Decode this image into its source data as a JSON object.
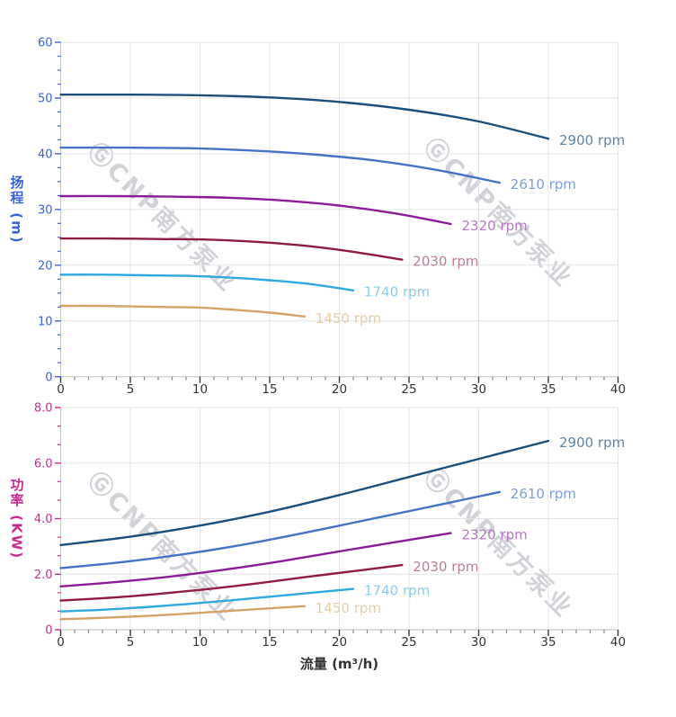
{
  "page": {
    "background": "#ffffff"
  },
  "watermark": {
    "text": "ⒼCNP南方泵业",
    "color": "#d2d3d9"
  },
  "axes": {
    "x_label_color": "#333333",
    "grid_color": "#e4e4e6",
    "axis_line_color": "#c9c9cc",
    "x_tick_major_color": "#3a3a3a",
    "x_tick_minor_color": "#8a8a8a"
  },
  "chart_data": [
    {
      "type": "line",
      "title": "",
      "xlabel": "",
      "ylabel": "扬程 (m)",
      "xlim": [
        0,
        40
      ],
      "ylim": [
        0,
        60
      ],
      "x_major_step": 5,
      "x_minor_step": 1,
      "y_major_step": 10,
      "y_minor_per_major": 4,
      "y_tick_format": "int",
      "x_ticklabels": [
        "0",
        "5",
        "10",
        "15",
        "20",
        "25",
        "30",
        "35",
        "40"
      ],
      "y_ticklabels": [
        "0",
        "10",
        "20",
        "30",
        "40",
        "50",
        "60"
      ],
      "axis_color": "#3d62d1",
      "grid": true,
      "legend_position": "end-of-curve labels",
      "series": [
        {
          "name": "2900 rpm",
          "color": "#1d4f7c",
          "label_color": "#6383a4",
          "points": [
            [
              0,
              50.6
            ],
            [
              5,
              50.6
            ],
            [
              10,
              50.5
            ],
            [
              15,
              50.1
            ],
            [
              20,
              49.3
            ],
            [
              25,
              47.9
            ],
            [
              30,
              45.8
            ],
            [
              35,
              42.7
            ]
          ]
        },
        {
          "name": "2610 rpm",
          "color": "#4673c5",
          "label_color": "#7e9ed9",
          "points": [
            [
              0,
              41.1
            ],
            [
              4.5,
              41.1
            ],
            [
              9,
              41.0
            ],
            [
              13.5,
              40.6
            ],
            [
              18,
              39.9
            ],
            [
              22.5,
              38.8
            ],
            [
              27,
              37.1
            ],
            [
              31.5,
              34.8
            ]
          ]
        },
        {
          "name": "2320 rpm",
          "color": "#8c1d98",
          "label_color": "#b678c2",
          "points": [
            [
              0,
              32.4
            ],
            [
              4,
              32.4
            ],
            [
              8,
              32.3
            ],
            [
              12,
              32.1
            ],
            [
              16,
              31.6
            ],
            [
              20,
              30.7
            ],
            [
              24,
              29.3
            ],
            [
              28,
              27.4
            ]
          ]
        },
        {
          "name": "2030 rpm",
          "color": "#8e1d41",
          "label_color": "#b8818f",
          "points": [
            [
              0,
              24.8
            ],
            [
              3.5,
              24.8
            ],
            [
              7,
              24.7
            ],
            [
              10.5,
              24.6
            ],
            [
              14,
              24.2
            ],
            [
              17.5,
              23.5
            ],
            [
              21,
              22.4
            ],
            [
              24.5,
              21.0
            ]
          ]
        },
        {
          "name": "1740 rpm",
          "color": "#30a9df",
          "label_color": "#8ecbee",
          "points": [
            [
              0,
              18.3
            ],
            [
              3,
              18.3
            ],
            [
              6,
              18.2
            ],
            [
              9,
              18.1
            ],
            [
              12,
              17.8
            ],
            [
              15,
              17.3
            ],
            [
              18,
              16.6
            ],
            [
              21,
              15.5
            ]
          ]
        },
        {
          "name": "1450 rpm",
          "color": "#d5a369",
          "label_color": "#e6cda9",
          "points": [
            [
              0,
              12.7
            ],
            [
              2.5,
              12.7
            ],
            [
              5,
              12.6
            ],
            [
              7.5,
              12.5
            ],
            [
              10,
              12.4
            ],
            [
              12.5,
              12.0
            ],
            [
              15,
              11.5
            ],
            [
              17.5,
              10.8
            ]
          ]
        }
      ]
    },
    {
      "type": "line",
      "title": "",
      "xlabel": "流量 (m³/h)",
      "ylabel": "功率 (KW)",
      "xlim": [
        0,
        40
      ],
      "ylim": [
        0,
        8
      ],
      "x_major_step": 5,
      "x_minor_step": 1,
      "y_major_step": 2,
      "y_minor_per_major": 3,
      "y_tick_format": "1dp",
      "x_ticklabels": [
        "0",
        "5",
        "10",
        "15",
        "20",
        "25",
        "30",
        "35",
        "40"
      ],
      "y_ticklabels": [
        "0",
        "2.0",
        "4.0",
        "6.0",
        "8.0"
      ],
      "axis_color": "#c42e8f",
      "grid": true,
      "legend_position": "end-of-curve labels",
      "series": [
        {
          "name": "2900 rpm",
          "color": "#1d4f7c",
          "label_color": "#6383a4",
          "points": [
            [
              0,
              3.05
            ],
            [
              5,
              3.35
            ],
            [
              10,
              3.75
            ],
            [
              15,
              4.25
            ],
            [
              20,
              4.85
            ],
            [
              25,
              5.5
            ],
            [
              30,
              6.15
            ],
            [
              35,
              6.8
            ]
          ]
        },
        {
          "name": "2610 rpm",
          "color": "#4673c5",
          "label_color": "#7e9ed9",
          "points": [
            [
              0,
              2.22
            ],
            [
              4.5,
              2.44
            ],
            [
              9,
              2.73
            ],
            [
              13.5,
              3.1
            ],
            [
              18,
              3.54
            ],
            [
              22.5,
              4.01
            ],
            [
              27,
              4.48
            ],
            [
              31.5,
              4.96
            ]
          ]
        },
        {
          "name": "2320 rpm",
          "color": "#8c1d98",
          "label_color": "#b678c2",
          "points": [
            [
              0,
              1.56
            ],
            [
              4,
              1.72
            ],
            [
              8,
              1.92
            ],
            [
              12,
              2.18
            ],
            [
              16,
              2.48
            ],
            [
              20,
              2.82
            ],
            [
              24,
              3.15
            ],
            [
              28,
              3.48
            ]
          ]
        },
        {
          "name": "2030 rpm",
          "color": "#8e1d41",
          "label_color": "#b8818f",
          "points": [
            [
              0,
              1.05
            ],
            [
              3.5,
              1.15
            ],
            [
              7,
              1.29
            ],
            [
              10.5,
              1.46
            ],
            [
              14,
              1.66
            ],
            [
              17.5,
              1.89
            ],
            [
              21,
              2.11
            ],
            [
              24.5,
              2.33
            ]
          ]
        },
        {
          "name": "1740 rpm",
          "color": "#30a9df",
          "label_color": "#8ecbee",
          "points": [
            [
              0,
              0.66
            ],
            [
              3,
              0.72
            ],
            [
              6,
              0.81
            ],
            [
              9,
              0.92
            ],
            [
              12,
              1.05
            ],
            [
              15,
              1.19
            ],
            [
              18,
              1.33
            ],
            [
              21,
              1.47
            ]
          ]
        },
        {
          "name": "1450 rpm",
          "color": "#d5a369",
          "label_color": "#e6cda9",
          "points": [
            [
              0,
              0.38
            ],
            [
              2.5,
              0.42
            ],
            [
              5,
              0.47
            ],
            [
              7.5,
              0.53
            ],
            [
              10,
              0.61
            ],
            [
              12.5,
              0.69
            ],
            [
              15,
              0.77
            ],
            [
              17.5,
              0.85
            ]
          ]
        }
      ]
    }
  ]
}
